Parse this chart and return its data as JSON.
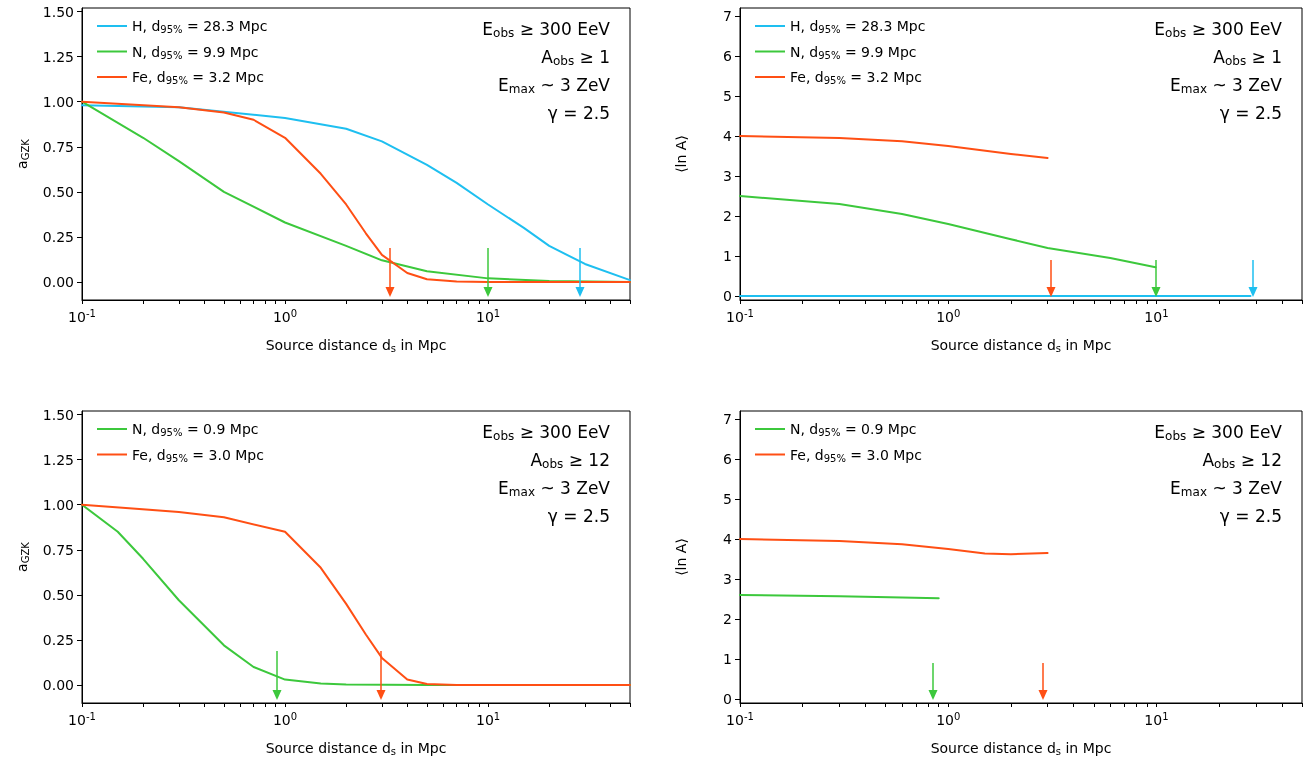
{
  "chart_data": [
    {
      "type": "line",
      "xlabel": "Source distance d$_{s}$ in Mpc",
      "ylabel": "a$_{GZK}$",
      "log": "x",
      "legend": "top left",
      "grid": false,
      "xlim": [
        0.1,
        50
      ],
      "ylim": [
        -0.1,
        1.52
      ],
      "xticks": [
        {
          "value": 0.1,
          "label": "10$^{-1}$"
        },
        {
          "value": 1,
          "label": "10$^{0}$"
        },
        {
          "value": 10,
          "label": "10$^{1}$"
        },
        {
          "value": 0.2,
          "label": null
        },
        {
          "value": 0.3,
          "label": null
        },
        {
          "value": 0.4,
          "label": null
        },
        {
          "value": 0.5,
          "label": null
        },
        {
          "value": 0.6,
          "label": null
        },
        {
          "value": 0.7,
          "label": null
        },
        {
          "value": 0.8,
          "label": null
        },
        {
          "value": 0.9,
          "label": null
        },
        {
          "value": 2,
          "label": null
        },
        {
          "value": 3,
          "label": null
        },
        {
          "value": 4,
          "label": null
        },
        {
          "value": 5,
          "label": null
        },
        {
          "value": 6,
          "label": null
        },
        {
          "value": 7,
          "label": null
        },
        {
          "value": 8,
          "label": null
        },
        {
          "value": 9,
          "label": null
        },
        {
          "value": 20,
          "label": null
        },
        {
          "value": 30,
          "label": null
        },
        {
          "value": 40,
          "label": null
        },
        {
          "value": 50,
          "label": null
        }
      ],
      "yticks": [
        {
          "value": 0,
          "label": "0.00"
        },
        {
          "value": 0.25,
          "label": "0.25"
        },
        {
          "value": 0.5,
          "label": "0.50"
        },
        {
          "value": 0.75,
          "label": "0.75"
        },
        {
          "value": 1,
          "label": "1.00"
        },
        {
          "value": 1.25,
          "label": "1.25"
        },
        {
          "value": 1.5,
          "label": "1.50"
        }
      ],
      "annotations": [
        "E$_{obs}$ ≥ 300 EeV",
        "A$_{obs}$ ≥ 1",
        "E$_{max}$ ~ 3 ZeV",
        "γ = 2.5"
      ],
      "series": [
        {
          "name": "H, d$_{95%}$ = 28.3 Mpc",
          "color": "#1ebff0",
          "x": [
            0.1,
            0.3,
            1,
            2,
            3,
            5,
            7,
            10,
            15,
            20,
            30,
            50
          ],
          "values": [
            0.98,
            0.97,
            0.91,
            0.85,
            0.78,
            0.65,
            0.55,
            0.43,
            0.3,
            0.2,
            0.1,
            0.01
          ]
        },
        {
          "name": "N, d$_{95%}$ = 9.9 Mpc",
          "color": "#3cc83c",
          "x": [
            0.1,
            0.2,
            0.3,
            0.5,
            1,
            2,
            3,
            5,
            10,
            20,
            50
          ],
          "values": [
            1.0,
            0.8,
            0.67,
            0.5,
            0.33,
            0.2,
            0.12,
            0.06,
            0.02,
            0.005,
            0
          ]
        },
        {
          "name": "Fe, d$_{95%}$ = 3.2 Mpc",
          "color": "#ff4f14",
          "x": [
            0.1,
            0.3,
            0.5,
            0.7,
            1,
            1.5,
            2,
            2.5,
            3,
            4,
            5,
            7,
            10,
            50
          ],
          "values": [
            1.0,
            0.97,
            0.94,
            0.9,
            0.8,
            0.6,
            0.43,
            0.27,
            0.15,
            0.05,
            0.015,
            0.003,
            0,
            0
          ]
        }
      ]
    },
    {
      "type": "line",
      "xlabel": "Source distance d$_{s}$ in Mpc",
      "ylabel": "⟨ln A⟩",
      "log": "x",
      "legend": "top left",
      "grid": false,
      "xlim": [
        0.1,
        50
      ],
      "ylim": [
        -0.1,
        7.2
      ],
      "xticks": [
        {
          "value": 0.1,
          "label": "10$^{-1}$"
        },
        {
          "value": 1,
          "label": "10$^{0}$"
        },
        {
          "value": 10,
          "label": "10$^{1}$"
        },
        {
          "value": 0.2,
          "label": null
        },
        {
          "value": 0.3,
          "label": null
        },
        {
          "value": 0.4,
          "label": null
        },
        {
          "value": 0.5,
          "label": null
        },
        {
          "value": 0.6,
          "label": null
        },
        {
          "value": 0.7,
          "label": null
        },
        {
          "value": 0.8,
          "label": null
        },
        {
          "value": 0.9,
          "label": null
        },
        {
          "value": 2,
          "label": null
        },
        {
          "value": 3,
          "label": null
        },
        {
          "value": 4,
          "label": null
        },
        {
          "value": 5,
          "label": null
        },
        {
          "value": 6,
          "label": null
        },
        {
          "value": 7,
          "label": null
        },
        {
          "value": 8,
          "label": null
        },
        {
          "value": 9,
          "label": null
        },
        {
          "value": 20,
          "label": null
        },
        {
          "value": 30,
          "label": null
        },
        {
          "value": 40,
          "label": null
        },
        {
          "value": 50,
          "label": null
        }
      ],
      "yticks": [
        0,
        1,
        2,
        3,
        4,
        5,
        6,
        7
      ],
      "annotations": [
        "E$_{obs}$ ≥ 300 EeV",
        "A$_{obs}$ ≥ 1",
        "E$_{max}$ ~ 3 ZeV",
        "γ = 2.5"
      ],
      "series": [
        {
          "name": "H, d$_{95%}$ = 28.3 Mpc",
          "color": "#1ebff0",
          "x": [
            0.1,
            1,
            10,
            28.3
          ],
          "values": [
            0,
            0,
            0,
            0
          ]
        },
        {
          "name": "N, d$_{95%}$ = 9.9 Mpc",
          "color": "#3cc83c",
          "x": [
            0.1,
            0.3,
            0.6,
            1,
            2,
            3,
            6,
            9.9
          ],
          "values": [
            2.5,
            2.3,
            2.05,
            1.8,
            1.42,
            1.2,
            0.95,
            0.72
          ]
        },
        {
          "name": "Fe, d$_{95%}$ = 3.2 Mpc",
          "color": "#ff4f14",
          "x": [
            0.1,
            0.3,
            0.6,
            1,
            2,
            3
          ],
          "values": [
            4.0,
            3.95,
            3.87,
            3.75,
            3.55,
            3.45
          ]
        }
      ]
    },
    {
      "type": "line",
      "xlabel": "Source distance d$_{s}$ in Mpc",
      "ylabel": "a$_{GZK}$",
      "log": "x",
      "legend": "top left",
      "grid": false,
      "xlim": [
        0.1,
        50
      ],
      "ylim": [
        -0.1,
        1.52
      ],
      "xticks": [
        {
          "value": 0.1,
          "label": "10$^{-1}$"
        },
        {
          "value": 1,
          "label": "10$^{0}$"
        },
        {
          "value": 10,
          "label": "10$^{1}$"
        },
        {
          "value": 0.2,
          "label": null
        },
        {
          "value": 0.3,
          "label": null
        },
        {
          "value": 0.4,
          "label": null
        },
        {
          "value": 0.5,
          "label": null
        },
        {
          "value": 0.6,
          "label": null
        },
        {
          "value": 0.7,
          "label": null
        },
        {
          "value": 0.8,
          "label": null
        },
        {
          "value": 0.9,
          "label": null
        },
        {
          "value": 2,
          "label": null
        },
        {
          "value": 3,
          "label": null
        },
        {
          "value": 4,
          "label": null
        },
        {
          "value": 5,
          "label": null
        },
        {
          "value": 6,
          "label": null
        },
        {
          "value": 7,
          "label": null
        },
        {
          "value": 8,
          "label": null
        },
        {
          "value": 9,
          "label": null
        },
        {
          "value": 20,
          "label": null
        },
        {
          "value": 30,
          "label": null
        },
        {
          "value": 40,
          "label": null
        },
        {
          "value": 50,
          "label": null
        }
      ],
      "yticks": [
        {
          "value": 0,
          "label": "0.00"
        },
        {
          "value": 0.25,
          "label": "0.25"
        },
        {
          "value": 0.5,
          "label": "0.50"
        },
        {
          "value": 0.75,
          "label": "0.75"
        },
        {
          "value": 1,
          "label": "1.00"
        },
        {
          "value": 1.25,
          "label": "1.25"
        },
        {
          "value": 1.5,
          "label": "1.50"
        }
      ],
      "annotations": [
        "E$_{obs}$ ≥ 300 EeV",
        "A$_{obs}$ ≥ 12",
        "E$_{max}$ ~ 3 ZeV",
        "γ = 2.5"
      ],
      "series": [
        {
          "name": "N, d$_{95%}$ = 0.9 Mpc",
          "color": "#3cc83c",
          "x": [
            0.1,
            0.15,
            0.2,
            0.3,
            0.5,
            0.7,
            1,
            1.5,
            2,
            5,
            50
          ],
          "values": [
            1.0,
            0.85,
            0.7,
            0.47,
            0.22,
            0.1,
            0.03,
            0.008,
            0.002,
            0,
            0
          ]
        },
        {
          "name": "Fe, d$_{95%}$ = 3.0 Mpc",
          "color": "#ff4f14",
          "x": [
            0.1,
            0.3,
            0.5,
            1,
            1.5,
            2,
            2.5,
            3,
            4,
            5,
            7,
            50
          ],
          "values": [
            1.0,
            0.96,
            0.93,
            0.85,
            0.65,
            0.45,
            0.28,
            0.15,
            0.03,
            0.005,
            0,
            0
          ]
        }
      ]
    },
    {
      "type": "line",
      "xlabel": "Source distance d$_{s}$ in Mpc",
      "ylabel": "⟨ln A⟩",
      "log": "x",
      "legend": "top left",
      "grid": false,
      "xlim": [
        0.1,
        50
      ],
      "ylim": [
        -0.1,
        7.2
      ],
      "xticks": [
        {
          "value": 0.1,
          "label": "10$^{-1}$"
        },
        {
          "value": 1,
          "label": "10$^{0}$"
        },
        {
          "value": 10,
          "label": "10$^{1}$"
        },
        {
          "value": 0.2,
          "label": null
        },
        {
          "value": 0.3,
          "label": null
        },
        {
          "value": 0.4,
          "label": null
        },
        {
          "value": 0.5,
          "label": null
        },
        {
          "value": 0.6,
          "label": null
        },
        {
          "value": 0.7,
          "label": null
        },
        {
          "value": 0.8,
          "label": null
        },
        {
          "value": 0.9,
          "label": null
        },
        {
          "value": 2,
          "label": null
        },
        {
          "value": 3,
          "label": null
        },
        {
          "value": 4,
          "label": null
        },
        {
          "value": 5,
          "label": null
        },
        {
          "value": 6,
          "label": null
        },
        {
          "value": 7,
          "label": null
        },
        {
          "value": 8,
          "label": null
        },
        {
          "value": 9,
          "label": null
        },
        {
          "value": 20,
          "label": null
        },
        {
          "value": 30,
          "label": null
        },
        {
          "value": 40,
          "label": null
        },
        {
          "value": 50,
          "label": null
        }
      ],
      "yticks": [
        0,
        1,
        2,
        3,
        4,
        5,
        6,
        7
      ],
      "annotations": [
        "E$_{obs}$ ≥ 300 EeV",
        "A$_{obs}$ ≥ 12",
        "E$_{max}$ ~ 3 ZeV",
        "γ = 2.5"
      ],
      "series": [
        {
          "name": "N, d$_{95%}$ = 0.9 Mpc",
          "color": "#3cc83c",
          "x": [
            0.1,
            0.3,
            0.6,
            0.9
          ],
          "values": [
            2.6,
            2.57,
            2.54,
            2.52
          ]
        },
        {
          "name": "Fe, d$_{95%}$ = 3.0 Mpc",
          "color": "#ff4f14",
          "x": [
            0.1,
            0.3,
            0.6,
            1,
            1.5,
            2,
            3
          ],
          "values": [
            4.0,
            3.95,
            3.87,
            3.75,
            3.64,
            3.62,
            3.65
          ]
        }
      ]
    }
  ]
}
